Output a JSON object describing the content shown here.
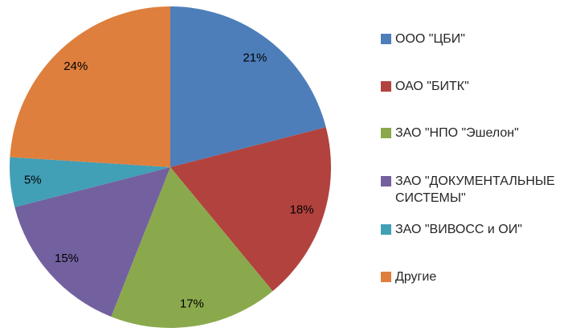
{
  "chart_data": {
    "type": "pie",
    "title": "",
    "categories": [
      "ООО \"ЦБИ\"",
      "ОАО \"БИТК\"",
      "ЗАО \"НПО \"Эшелон\"",
      "ЗАО \"ДОКУМЕНТАЛЬНЫЕ СИСТЕМЫ\"",
      "ЗАО \"ВИВОСС и ОИ\"",
      "Другие"
    ],
    "values": [
      21,
      18,
      17,
      15,
      5,
      24
    ],
    "unit": "%",
    "slice_labels": [
      "21%",
      "18%",
      "17%",
      "15%",
      "5%",
      "24%"
    ],
    "colors": [
      "#4D7EBA",
      "#B2423E",
      "#8AA94C",
      "#73609F",
      "#419FB6",
      "#DE7F3D"
    ],
    "start_angle_deg": 0,
    "direction": "clockwise",
    "legend_position": "right",
    "slice_label_color": "#000000",
    "legend_text_color": "#262626"
  }
}
